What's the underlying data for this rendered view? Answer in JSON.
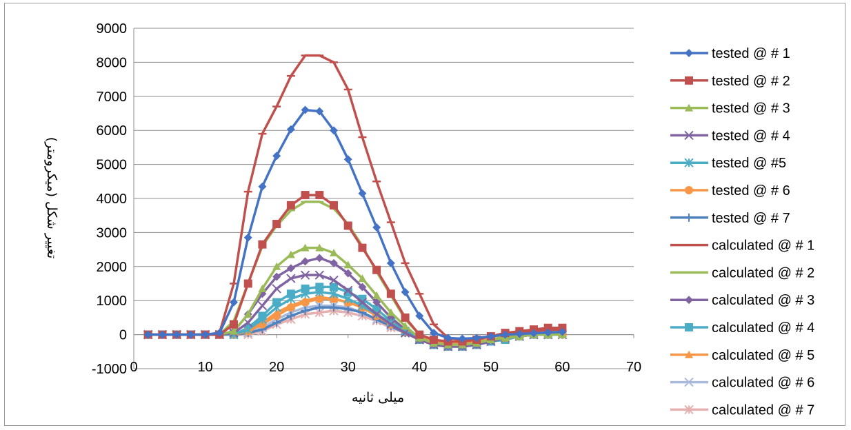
{
  "chart_data": {
    "type": "line",
    "title": "",
    "xlabel": "میلی ثانیه",
    "ylabel": "تغییر شکل (میکرومتر)",
    "xlim": [
      0,
      70
    ],
    "ylim": [
      -1000,
      9000
    ],
    "x_ticks": [
      "0",
      "10",
      "20",
      "30",
      "40",
      "50",
      "60",
      "70"
    ],
    "y_ticks": [
      "-1000",
      "0",
      "1000",
      "2000",
      "3000",
      "4000",
      "5000",
      "6000",
      "7000",
      "8000",
      "9000"
    ],
    "grid": "horizontal",
    "legend_position": "right",
    "x": [
      2,
      4,
      6,
      8,
      10,
      12,
      14,
      16,
      18,
      20,
      22,
      24,
      26,
      28,
      30,
      32,
      34,
      36,
      38,
      40,
      42,
      44,
      46,
      48,
      50,
      52,
      54,
      56,
      58,
      60
    ],
    "series": [
      {
        "name": "tested @ # 1",
        "color": "#4472C4",
        "marker": "diamond",
        "line": true,
        "values": [
          0,
          0,
          0,
          0,
          0,
          50,
          950,
          2850,
          4350,
          5250,
          6030,
          6600,
          6560,
          6000,
          5150,
          4150,
          3150,
          2100,
          1250,
          550,
          50,
          -100,
          -120,
          -100,
          -50,
          0,
          20,
          40,
          60,
          80
        ]
      },
      {
        "name": "tested @ # 2",
        "color": "#C0504D",
        "marker": "square",
        "line": true,
        "values": [
          0,
          0,
          0,
          0,
          0,
          0,
          300,
          1500,
          2650,
          3250,
          3800,
          4100,
          4100,
          3800,
          3200,
          2550,
          1900,
          1200,
          500,
          0,
          -150,
          -200,
          -200,
          -150,
          -50,
          50,
          100,
          150,
          200,
          200
        ]
      },
      {
        "name": "tested @ # 3",
        "color": "#9BBB59",
        "marker": "triangle",
        "line": true,
        "values": [
          0,
          0,
          0,
          0,
          0,
          0,
          100,
          600,
          1350,
          2000,
          2350,
          2550,
          2550,
          2400,
          2050,
          1650,
          1150,
          650,
          250,
          -100,
          -250,
          -300,
          -300,
          -250,
          -150,
          -100,
          -50,
          0,
          0,
          0
        ]
      },
      {
        "name": "tested @ # 4",
        "color": "#8064A2",
        "marker": "x",
        "line": true,
        "values": [
          0,
          0,
          0,
          0,
          0,
          0,
          50,
          350,
          850,
          1350,
          1650,
          1750,
          1750,
          1600,
          1300,
          950,
          600,
          300,
          50,
          -150,
          -300,
          -350,
          -350,
          -300,
          -200,
          -100,
          -50,
          0,
          0,
          0
        ]
      },
      {
        "name": "tested @ #5",
        "color": "#4BACC6",
        "marker": "star",
        "line": true,
        "values": [
          0,
          0,
          0,
          0,
          0,
          0,
          0,
          150,
          450,
          800,
          1050,
          1200,
          1250,
          1200,
          1050,
          850,
          600,
          350,
          100,
          -100,
          -250,
          -300,
          -300,
          -250,
          -200,
          -100,
          -50,
          0,
          0,
          0
        ]
      },
      {
        "name": "tested @ # 6",
        "color": "#F79646",
        "marker": "circle",
        "line": true,
        "values": [
          0,
          0,
          0,
          0,
          0,
          0,
          0,
          100,
          300,
          550,
          800,
          950,
          1050,
          1050,
          950,
          800,
          550,
          300,
          100,
          -100,
          -200,
          -250,
          -250,
          -200,
          -150,
          -100,
          -50,
          0,
          0,
          0
        ]
      },
      {
        "name": "tested @ # 7",
        "color": "#4F81BD",
        "marker": "plus",
        "line": true,
        "values": [
          0,
          0,
          0,
          0,
          0,
          0,
          0,
          50,
          150,
          350,
          550,
          700,
          800,
          800,
          750,
          650,
          450,
          250,
          50,
          -100,
          -200,
          -250,
          -250,
          -200,
          -150,
          -100,
          -50,
          0,
          0,
          0
        ]
      },
      {
        "name": "calculated @ # 1",
        "color": "#C0504D",
        "marker": "dash",
        "line": true,
        "values": [
          0,
          0,
          0,
          0,
          0,
          50,
          1500,
          4200,
          5900,
          6700,
          7600,
          8200,
          8200,
          8000,
          7200,
          5800,
          4500,
          3300,
          2100,
          1200,
          300,
          -100,
          -150,
          -100,
          -50,
          0,
          50,
          100,
          150,
          150
        ]
      },
      {
        "name": "calculated @ # 2",
        "color": "#9BBB59",
        "marker": "dash",
        "line": true,
        "values": [
          0,
          0,
          0,
          0,
          0,
          0,
          400,
          1500,
          2600,
          3200,
          3650,
          3900,
          3900,
          3700,
          3250,
          2600,
          1850,
          1150,
          450,
          0,
          -200,
          -300,
          -300,
          -250,
          -150,
          -50,
          0,
          50,
          100,
          100
        ]
      },
      {
        "name": "calculated @ # 3",
        "color": "#8064A2",
        "marker": "diamond",
        "line": true,
        "values": [
          0,
          0,
          0,
          0,
          0,
          0,
          100,
          600,
          1200,
          1700,
          1950,
          2150,
          2250,
          2100,
          1800,
          1400,
          950,
          500,
          150,
          -150,
          -300,
          -350,
          -350,
          -300,
          -200,
          -100,
          -50,
          0,
          0,
          0
        ]
      },
      {
        "name": "calculated @ # 4",
        "color": "#4BACC6",
        "marker": "square",
        "line": true,
        "values": [
          0,
          0,
          0,
          0,
          0,
          0,
          0,
          200,
          550,
          950,
          1200,
          1350,
          1400,
          1400,
          1250,
          1050,
          750,
          400,
          100,
          -150,
          -300,
          -350,
          -350,
          -300,
          -200,
          -150,
          -50,
          0,
          0,
          50
        ]
      },
      {
        "name": "calculated @ # 5",
        "color": "#F79646",
        "marker": "triangle",
        "line": true,
        "values": [
          0,
          0,
          0,
          0,
          0,
          0,
          0,
          100,
          350,
          650,
          850,
          1000,
          1100,
          1050,
          950,
          800,
          550,
          300,
          50,
          -150,
          -300,
          -350,
          -350,
          -300,
          -200,
          -100,
          -50,
          0,
          0,
          0
        ]
      },
      {
        "name": "calculated @ # 6",
        "color": "#A9B9DB",
        "marker": "x",
        "line": true,
        "values": [
          0,
          0,
          0,
          0,
          0,
          0,
          0,
          50,
          200,
          450,
          650,
          800,
          850,
          850,
          800,
          650,
          450,
          250,
          50,
          -150,
          -250,
          -300,
          -300,
          -250,
          -200,
          -100,
          -50,
          0,
          0,
          0
        ]
      },
      {
        "name": "calculated @ # 7",
        "color": "#E6B0B0",
        "marker": "star",
        "line": true,
        "values": [
          0,
          0,
          0,
          0,
          0,
          0,
          0,
          0,
          100,
          300,
          450,
          600,
          650,
          700,
          650,
          550,
          400,
          200,
          50,
          -100,
          -200,
          -250,
          -250,
          -200,
          -150,
          -100,
          -50,
          0,
          0,
          0
        ]
      }
    ]
  }
}
